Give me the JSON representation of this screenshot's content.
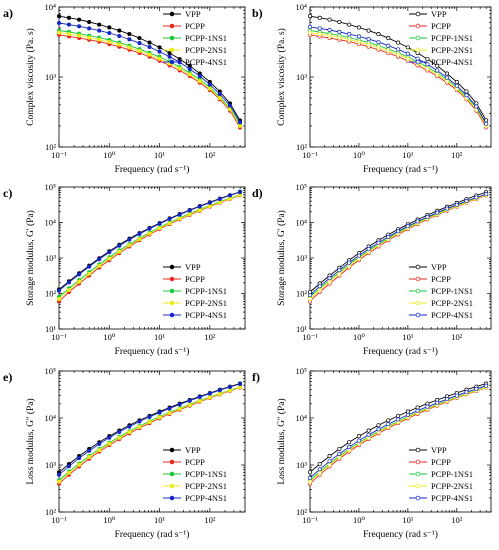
{
  "colors": {
    "VPP": "#000000",
    "PCPP": "#e8261f",
    "PCPP-1NS1": "#19c93a",
    "PCPP-2NS1": "#ecec1c",
    "PCPP-4NS1": "#1428c8"
  },
  "legend_labels": [
    "VPP",
    "PCPP",
    "PCPP-1NS1",
    "PCPP-2NS1",
    "PCPP-4NS1"
  ],
  "chart_data": [
    {
      "panel": "a)",
      "type": "line",
      "x_scale": "log",
      "y_scale": "log",
      "xlabel": "Frequency (rad s⁻¹)",
      "ylabel": "Complex viscosity (Pa. s)",
      "xlim": [
        0.1,
        500
      ],
      "ylim": [
        100,
        10000
      ],
      "x_ticks": [
        0.1,
        1,
        10,
        100
      ],
      "x_tick_labels": [
        "10⁻¹",
        "10⁰",
        "10¹",
        "10²"
      ],
      "y_ticks": [
        100,
        1000,
        10000
      ],
      "y_tick_labels": [
        "10²",
        "10³",
        "10⁴"
      ],
      "legend": "top-right",
      "markers": "filled",
      "x": [
        0.1,
        0.158,
        0.251,
        0.398,
        0.631,
        1,
        1.58,
        2.51,
        3.98,
        6.31,
        10,
        15.8,
        25.1,
        39.8,
        63.1,
        100,
        158,
        251,
        398
      ],
      "series": [
        {
          "name": "VPP",
          "values": [
            7400,
            7000,
            6600,
            6100,
            5600,
            5100,
            4600,
            4100,
            3600,
            3100,
            2650,
            2200,
            1800,
            1450,
            1120,
            850,
            620,
            420,
            240
          ]
        },
        {
          "name": "PCPP",
          "values": [
            4000,
            3800,
            3600,
            3400,
            3200,
            2950,
            2700,
            2450,
            2200,
            1950,
            1700,
            1460,
            1240,
            1030,
            830,
            650,
            480,
            330,
            190
          ]
        },
        {
          "name": "PCPP-1NS1",
          "values": [
            4600,
            4400,
            4150,
            3900,
            3650,
            3380,
            3100,
            2800,
            2500,
            2220,
            1940,
            1660,
            1390,
            1150,
            920,
            710,
            520,
            360,
            210
          ]
        },
        {
          "name": "PCPP-2NS1",
          "values": [
            4300,
            4100,
            3900,
            3650,
            3420,
            3170,
            2900,
            2630,
            2360,
            2090,
            1820,
            1560,
            1320,
            1090,
            870,
            680,
            500,
            345,
            200
          ]
        },
        {
          "name": "PCPP-4NS1",
          "values": [
            5900,
            5600,
            5300,
            4950,
            4600,
            4250,
            3850,
            3450,
            3050,
            2680,
            2300,
            1950,
            1620,
            1300,
            1030,
            780,
            570,
            390,
            225
          ]
        }
      ]
    },
    {
      "panel": "b)",
      "type": "line",
      "x_scale": "log",
      "y_scale": "log",
      "xlabel": "Frequency (rad s⁻¹)",
      "ylabel": "Complex viscosity (Pa. s)",
      "xlim": [
        0.1,
        500
      ],
      "ylim": [
        100,
        10000
      ],
      "x_ticks": [
        0.1,
        1,
        10,
        100
      ],
      "x_tick_labels": [
        "10⁻¹",
        "10⁰",
        "10¹",
        "10²"
      ],
      "y_ticks": [
        100,
        1000,
        10000
      ],
      "y_tick_labels": [
        "10²",
        "10³",
        "10⁴"
      ],
      "legend": "top-right",
      "markers": "open",
      "x": [
        0.1,
        0.158,
        0.251,
        0.398,
        0.631,
        1,
        1.58,
        2.51,
        3.98,
        6.31,
        10,
        15.8,
        25.1,
        39.8,
        63.1,
        100,
        158,
        251,
        398
      ],
      "series": [
        {
          "name": "VPP",
          "values": [
            7400,
            7000,
            6600,
            6100,
            5600,
            5100,
            4600,
            4100,
            3600,
            3100,
            2650,
            2200,
            1800,
            1450,
            1120,
            850,
            620,
            420,
            240
          ]
        },
        {
          "name": "PCPP",
          "values": [
            4000,
            3800,
            3600,
            3400,
            3200,
            2950,
            2700,
            2450,
            2200,
            1950,
            1700,
            1460,
            1240,
            1030,
            830,
            650,
            480,
            330,
            190
          ]
        },
        {
          "name": "PCPP-1NS1",
          "values": [
            4600,
            4400,
            4150,
            3900,
            3650,
            3380,
            3100,
            2800,
            2500,
            2220,
            1940,
            1660,
            1390,
            1150,
            920,
            710,
            520,
            360,
            210
          ]
        },
        {
          "name": "PCPP-2NS1",
          "values": [
            4300,
            4100,
            3900,
            3650,
            3420,
            3170,
            2900,
            2630,
            2360,
            2090,
            1820,
            1560,
            1320,
            1090,
            870,
            680,
            500,
            345,
            200
          ]
        },
        {
          "name": "PCPP-4NS1",
          "values": [
            5200,
            4950,
            4700,
            4400,
            4100,
            3800,
            3480,
            3150,
            2800,
            2480,
            2150,
            1830,
            1520,
            1240,
            980,
            750,
            550,
            380,
            215
          ]
        }
      ]
    },
    {
      "panel": "c)",
      "type": "line",
      "x_scale": "log",
      "y_scale": "log",
      "xlabel": "Frequency (rad s⁻¹)",
      "ylabel": "Storage modulus, G' (Pa)",
      "xlim": [
        0.1,
        500
      ],
      "ylim": [
        10,
        100000
      ],
      "x_ticks": [
        0.1,
        1,
        10,
        100
      ],
      "x_tick_labels": [
        "10⁻¹",
        "10⁰",
        "10¹",
        "10²"
      ],
      "y_ticks": [
        10,
        100,
        1000,
        10000,
        100000
      ],
      "y_tick_labels": [
        "10¹",
        "10²",
        "10³",
        "10⁴",
        "10⁵"
      ],
      "legend": "bottom-right",
      "markers": "filled",
      "x": [
        0.1,
        0.158,
        0.251,
        0.398,
        0.631,
        1,
        1.58,
        2.51,
        3.98,
        6.31,
        10,
        15.8,
        25.1,
        39.8,
        63.1,
        100,
        158,
        251,
        398
      ],
      "series": [
        {
          "name": "VPP",
          "values": [
            130,
            220,
            370,
            610,
            980,
            1550,
            2350,
            3500,
            5000,
            7000,
            9600,
            13000,
            17300,
            22500,
            29000,
            37000,
            47000,
            59000,
            73000
          ]
        },
        {
          "name": "PCPP",
          "values": [
            60,
            110,
            190,
            320,
            540,
            870,
            1370,
            2100,
            3150,
            4600,
            6500,
            9000,
            12200,
            16300,
            21500,
            28000,
            36000,
            46000,
            58000
          ]
        },
        {
          "name": "PCPP-1NS1",
          "values": [
            80,
            140,
            240,
            400,
            660,
            1050,
            1630,
            2450,
            3600,
            5200,
            7300,
            10000,
            13500,
            17900,
            23400,
            30200,
            38500,
            48500,
            60500
          ]
        },
        {
          "name": "PCPP-2NS1",
          "values": [
            70,
            125,
            215,
            360,
            600,
            960,
            1500,
            2280,
            3380,
            4900,
            6900,
            9500,
            12800,
            17000,
            22300,
            29000,
            37000,
            47000,
            59000
          ]
        },
        {
          "name": "PCPP-4NS1",
          "values": [
            120,
            205,
            345,
            570,
            920,
            1450,
            2220,
            3300,
            4750,
            6700,
            9200,
            12500,
            16700,
            21900,
            28200,
            36000,
            46000,
            58000,
            72000
          ]
        }
      ]
    },
    {
      "panel": "d)",
      "type": "line",
      "x_scale": "log",
      "y_scale": "log",
      "xlabel": "Frequency (rad s⁻¹)",
      "ylabel": "Storage modulus, G' (Pa)",
      "xlim": [
        0.1,
        500
      ],
      "ylim": [
        10,
        100000
      ],
      "x_ticks": [
        0.1,
        1,
        10,
        100
      ],
      "x_tick_labels": [
        "10⁻¹",
        "10⁰",
        "10¹",
        "10²"
      ],
      "y_ticks": [
        10,
        100,
        1000,
        10000,
        100000
      ],
      "y_tick_labels": [
        "10¹",
        "10²",
        "10³",
        "10⁴",
        "10⁵"
      ],
      "legend": "bottom-right",
      "markers": "open",
      "x": [
        0.1,
        0.158,
        0.251,
        0.398,
        0.631,
        1,
        1.58,
        2.51,
        3.98,
        6.31,
        10,
        15.8,
        25.1,
        39.8,
        63.1,
        100,
        158,
        251,
        398
      ],
      "series": [
        {
          "name": "VPP",
          "values": [
            110,
            190,
            320,
            530,
            860,
            1370,
            2100,
            3150,
            4550,
            6450,
            8900,
            12100,
            16200,
            21300,
            27700,
            35500,
            45500,
            57500,
            71500
          ]
        },
        {
          "name": "PCPP",
          "values": [
            60,
            110,
            190,
            320,
            540,
            870,
            1370,
            2100,
            3150,
            4600,
            6500,
            9000,
            12200,
            16300,
            21500,
            28000,
            36000,
            46000,
            58000
          ]
        },
        {
          "name": "PCPP-1NS1",
          "values": [
            80,
            140,
            240,
            400,
            660,
            1050,
            1630,
            2450,
            3600,
            5200,
            7300,
            10000,
            13500,
            17900,
            23400,
            30200,
            38500,
            48500,
            60500
          ]
        },
        {
          "name": "PCPP-2NS1",
          "values": [
            70,
            125,
            215,
            360,
            600,
            960,
            1500,
            2280,
            3380,
            4900,
            6900,
            9500,
            12800,
            17000,
            22300,
            29000,
            37000,
            47000,
            59000
          ]
        },
        {
          "name": "PCPP-4NS1",
          "values": [
            90,
            160,
            270,
            450,
            740,
            1170,
            1800,
            2700,
            3950,
            5650,
            7850,
            10700,
            14300,
            18900,
            24600,
            31600,
            40200,
            50500,
            62800
          ]
        }
      ]
    },
    {
      "panel": "e)",
      "type": "line",
      "x_scale": "log",
      "y_scale": "log",
      "xlabel": "Frequency (rad s⁻¹)",
      "ylabel": "Loss modulus, G'' (Pa)",
      "xlim": [
        0.1,
        500
      ],
      "ylim": [
        100,
        100000
      ],
      "x_ticks": [
        0.1,
        1,
        10,
        100
      ],
      "x_tick_labels": [
        "10⁻¹",
        "10⁰",
        "10¹",
        "10²"
      ],
      "y_ticks": [
        100,
        1000,
        10000,
        100000
      ],
      "y_tick_labels": [
        "10²",
        "10³",
        "10⁴",
        "10⁵"
      ],
      "legend": "bottom-right",
      "markers": "filled",
      "x": [
        0.1,
        0.158,
        0.251,
        0.398,
        0.631,
        1,
        1.58,
        2.51,
        3.98,
        6.31,
        10,
        15.8,
        25.1,
        39.8,
        63.1,
        100,
        158,
        251,
        398
      ],
      "series": [
        {
          "name": "VPP",
          "values": [
            700,
            1050,
            1550,
            2200,
            3050,
            4100,
            5400,
            7000,
            8900,
            11100,
            13700,
            16700,
            20200,
            24200,
            28800,
            34000,
            40000,
            46500,
            54000
          ]
        },
        {
          "name": "PCPP",
          "values": [
            400,
            620,
            930,
            1360,
            1930,
            2650,
            3560,
            4700,
            6100,
            7800,
            9800,
            12200,
            15000,
            18300,
            22200,
            26700,
            31800,
            37600,
            44300
          ]
        },
        {
          "name": "PCPP-1NS1",
          "values": [
            470,
            720,
            1070,
            1550,
            2180,
            2980,
            3980,
            5220,
            6720,
            8520,
            10650,
            13150,
            16050,
            19450,
            23400,
            27900,
            33100,
            39000,
            45700
          ]
        },
        {
          "name": "PCPP-2NS1",
          "values": [
            440,
            680,
            1010,
            1470,
            2070,
            2840,
            3800,
            5000,
            6450,
            8200,
            10300,
            12750,
            15600,
            18950,
            22850,
            27350,
            32500,
            38400,
            45100
          ]
        },
        {
          "name": "PCPP-4NS1",
          "values": [
            620,
            940,
            1400,
            2000,
            2800,
            3800,
            5050,
            6550,
            8400,
            10550,
            13050,
            16000,
            19400,
            23350,
            27900,
            33100,
            39000,
            45600,
            53000
          ]
        }
      ]
    },
    {
      "panel": "f)",
      "type": "line",
      "x_scale": "log",
      "y_scale": "log",
      "xlabel": "Frequency (rad s⁻¹)",
      "ylabel": "Loss modulus, G'' (Pa)",
      "xlim": [
        0.1,
        500
      ],
      "ylim": [
        100,
        100000
      ],
      "x_ticks": [
        0.1,
        1,
        10,
        100
      ],
      "x_tick_labels": [
        "10⁻¹",
        "10⁰",
        "10¹",
        "10²"
      ],
      "y_ticks": [
        100,
        1000,
        10000,
        100000
      ],
      "y_tick_labels": [
        "10²",
        "10³",
        "10⁴",
        "10⁵"
      ],
      "legend": "bottom-right",
      "markers": "open",
      "x": [
        0.1,
        0.158,
        0.251,
        0.398,
        0.631,
        1,
        1.58,
        2.51,
        3.98,
        6.31,
        10,
        15.8,
        25.1,
        39.8,
        63.1,
        100,
        158,
        251,
        398
      ],
      "series": [
        {
          "name": "VPP",
          "values": [
            700,
            1050,
            1550,
            2200,
            3050,
            4100,
            5400,
            7000,
            8900,
            11100,
            13700,
            16700,
            20200,
            24200,
            28800,
            34000,
            40000,
            46500,
            54000
          ]
        },
        {
          "name": "PCPP",
          "values": [
            400,
            620,
            930,
            1360,
            1930,
            2650,
            3560,
            4700,
            6100,
            7800,
            9800,
            12200,
            15000,
            18300,
            22200,
            26700,
            31800,
            37600,
            44300
          ]
        },
        {
          "name": "PCPP-1NS1",
          "values": [
            470,
            720,
            1070,
            1550,
            2180,
            2980,
            3980,
            5220,
            6720,
            8520,
            10650,
            13150,
            16050,
            19450,
            23400,
            27900,
            33100,
            39000,
            45700
          ]
        },
        {
          "name": "PCPP-2NS1",
          "values": [
            440,
            680,
            1010,
            1470,
            2070,
            2840,
            3800,
            5000,
            6450,
            8200,
            10300,
            12750,
            15600,
            18950,
            22850,
            27350,
            32500,
            38400,
            45100
          ]
        },
        {
          "name": "PCPP-4NS1",
          "values": [
            530,
            810,
            1200,
            1730,
            2420,
            3300,
            4400,
            5750,
            7380,
            9330,
            11620,
            14300,
            17400,
            21000,
            25150,
            29900,
            35350,
            41550,
            48600
          ]
        }
      ]
    }
  ]
}
